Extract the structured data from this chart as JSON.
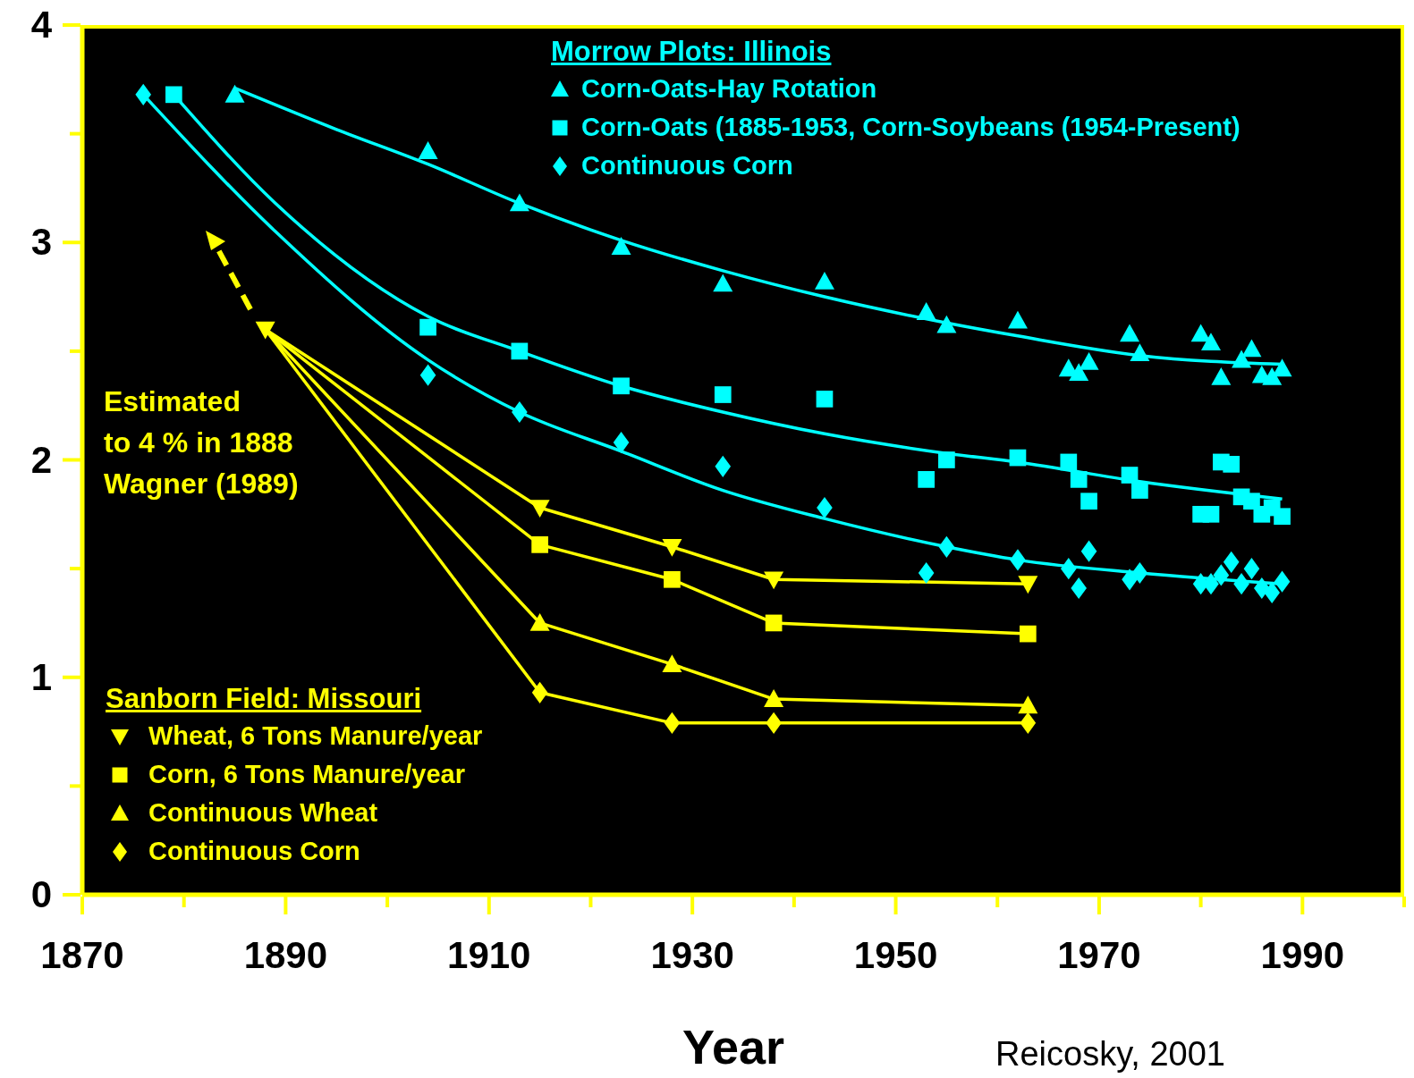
{
  "chart_data": {
    "type": "scatter",
    "xlabel": "Year",
    "xlim": [
      1870,
      2000
    ],
    "xticks": [
      1870,
      {
        "value": 1880,
        "label": null
      },
      1890,
      {
        "value": 1900,
        "label": null
      },
      1910,
      {
        "value": 1920,
        "label": null
      },
      1930,
      {
        "value": 1940,
        "label": null
      },
      1950,
      {
        "value": 1960,
        "label": null
      },
      1970,
      {
        "value": 1980,
        "label": null
      },
      1990,
      {
        "value": 2000,
        "label": null
      }
    ],
    "ylim": [
      0,
      4
    ],
    "yticks": [
      0,
      {
        "value": 0.5,
        "label": null
      },
      1,
      {
        "value": 1.5,
        "label": null
      },
      2,
      {
        "value": 2.5,
        "label": null
      },
      3,
      {
        "value": 3.5,
        "label": null
      },
      4
    ],
    "legend": "bottom left",
    "annotations": [
      "Morrow Plots:  Illinois",
      "Sanborn Field:  Missouri",
      "Estimated\nto 4 % in 1888\nWagner (1989)",
      "Reicosky, 2001"
    ],
    "series": [
      {
        "name": "Corn-Oats-Hay Rotation",
        "color": "#00ffff",
        "marker": "triangle",
        "x": [
          1885,
          1904,
          1913,
          1923,
          1933,
          1943,
          1953,
          1955,
          1962,
          1967,
          1968,
          1969,
          1973,
          1974,
          1980,
          1981,
          1982,
          1984,
          1985,
          1986,
          1987,
          1988
        ],
        "values": [
          3.68,
          3.42,
          3.18,
          2.98,
          2.81,
          2.82,
          2.68,
          2.62,
          2.64,
          2.42,
          2.4,
          2.45,
          2.58,
          2.49,
          2.58,
          2.54,
          2.38,
          2.46,
          2.51,
          2.39,
          2.38,
          2.42
        ]
      },
      {
        "name": "Corn-Oats (1885-1953, Corn-Soybeans (1954-Present)",
        "color": "#00ffff",
        "marker": "square",
        "x": [
          1879,
          1904,
          1913,
          1923,
          1933,
          1943,
          1953,
          1955,
          1962,
          1967,
          1968,
          1969,
          1973,
          1974,
          1980,
          1981,
          1982,
          1983,
          1984,
          1985,
          1986,
          1987,
          1988
        ],
        "values": [
          3.68,
          2.61,
          2.5,
          2.34,
          2.3,
          2.28,
          1.91,
          2.0,
          2.01,
          1.99,
          1.91,
          1.81,
          1.93,
          1.86,
          1.75,
          1.75,
          1.99,
          1.98,
          1.83,
          1.81,
          1.75,
          1.78,
          1.74
        ]
      },
      {
        "name": "Continuous Corn",
        "color": "#00ffff",
        "marker": "diamond",
        "x": [
          1876,
          1904,
          1913,
          1923,
          1933,
          1943,
          1953,
          1955,
          1962,
          1967,
          1968,
          1969,
          1973,
          1974,
          1980,
          1981,
          1982,
          1983,
          1984,
          1985,
          1986,
          1987,
          1988
        ],
        "values": [
          3.68,
          2.39,
          2.22,
          2.08,
          1.97,
          1.78,
          1.48,
          1.6,
          1.54,
          1.5,
          1.41,
          1.58,
          1.45,
          1.48,
          1.43,
          1.43,
          1.47,
          1.53,
          1.43,
          1.5,
          1.41,
          1.39,
          1.44
        ]
      },
      {
        "type": "line",
        "color": "#00ffff",
        "marker": "none",
        "x": [
          1885,
          1895,
          1904,
          1913,
          1923,
          1933,
          1943,
          1955,
          1962,
          1974,
          1988
        ],
        "values": [
          3.71,
          3.52,
          3.36,
          3.18,
          3.01,
          2.87,
          2.75,
          2.63,
          2.57,
          2.48,
          2.44
        ]
      },
      {
        "type": "line",
        "color": "#00ffff",
        "marker": "none",
        "x": [
          1879,
          1889,
          1904,
          1913,
          1923,
          1933,
          1943,
          1955,
          1962,
          1974,
          1988
        ],
        "values": [
          3.68,
          3.18,
          2.66,
          2.5,
          2.34,
          2.22,
          2.12,
          2.03,
          1.99,
          1.9,
          1.82
        ]
      },
      {
        "type": "line",
        "color": "#00ffff",
        "marker": "none",
        "x": [
          1876,
          1889,
          1904,
          1913,
          1923,
          1933,
          1943,
          1955,
          1962,
          1974,
          1988
        ],
        "values": [
          3.68,
          3.05,
          2.46,
          2.22,
          2.04,
          1.86,
          1.73,
          1.6,
          1.54,
          1.48,
          1.43
        ]
      },
      {
        "type": "line",
        "name": "Wheat, 6 Tons Manure/year",
        "color": "#ffff00",
        "marker": "triangle-down",
        "x": [
          1888,
          1915,
          1928,
          1938,
          1963
        ],
        "values": [
          2.6,
          1.78,
          1.6,
          1.45,
          1.43
        ]
      },
      {
        "type": "line",
        "name": "Corn, 6 Tons Manure/year",
        "color": "#ffff00",
        "marker": "square",
        "x": [
          1888,
          1915,
          1928,
          1938,
          1963
        ],
        "values": [
          2.6,
          1.61,
          1.45,
          1.25,
          1.2
        ]
      },
      {
        "type": "line",
        "name": "Continuous Wheat",
        "color": "#ffff00",
        "marker": "triangle",
        "x": [
          1888,
          1915,
          1928,
          1938,
          1963
        ],
        "values": [
          2.6,
          1.25,
          1.06,
          0.9,
          0.87
        ]
      },
      {
        "type": "line",
        "name": "Continuous Corn",
        "color": "#ffff00",
        "marker": "diamond",
        "x": [
          1888,
          1915,
          1928,
          1938,
          1963
        ],
        "values": [
          2.6,
          0.93,
          0.79,
          0.79,
          0.79
        ]
      }
    ]
  }
}
